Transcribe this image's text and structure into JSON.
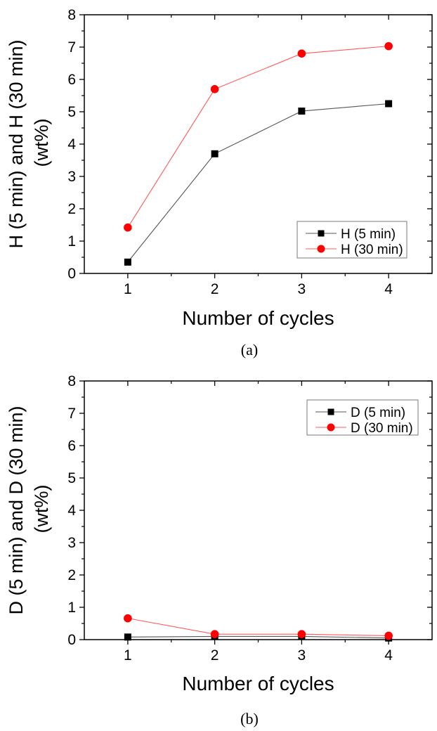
{
  "chart_data": [
    {
      "type": "line",
      "panel_label": "(a)",
      "xlabel": "Number of cycles",
      "ylabel_line1": "H (5 min) and H (30 min)",
      "ylabel_line2": "(wt%)",
      "xlim": [
        0.5,
        4.5
      ],
      "ylim": [
        0,
        8
      ],
      "x_ticks": [
        1,
        2,
        3,
        4
      ],
      "x_tick_labels": [
        "1",
        "2",
        "3",
        "4"
      ],
      "y_ticks": [
        0,
        1,
        2,
        3,
        4,
        5,
        6,
        7,
        8
      ],
      "y_tick_labels": [
        "0",
        "1",
        "2",
        "3",
        "4",
        "5",
        "6",
        "7",
        "8"
      ],
      "grid": false,
      "legend_position": "bottom-right",
      "x": [
        1,
        2,
        3,
        4
      ],
      "series": [
        {
          "name": "H (5 min)",
          "marker": "square",
          "color": "#000000",
          "line_color": "#555555",
          "values": [
            0.35,
            3.7,
            5.02,
            5.25
          ]
        },
        {
          "name": "H (30 min)",
          "marker": "circle",
          "color": "#ff0000",
          "line_color": "#ff5a5a",
          "values": [
            1.42,
            5.7,
            6.8,
            7.03
          ]
        }
      ]
    },
    {
      "type": "line",
      "panel_label": "(b)",
      "xlabel": "Number of cycles",
      "ylabel_line1": "D (5 min) and D (30 min)",
      "ylabel_line2": "(wt%)",
      "xlim": [
        0.5,
        4.5
      ],
      "ylim": [
        0,
        8
      ],
      "x_ticks": [
        1,
        2,
        3,
        4
      ],
      "x_tick_labels": [
        "1",
        "2",
        "3",
        "4"
      ],
      "y_ticks": [
        0,
        1,
        2,
        3,
        4,
        5,
        6,
        7,
        8
      ],
      "y_tick_labels": [
        "0",
        "1",
        "2",
        "3",
        "4",
        "5",
        "6",
        "7",
        "8"
      ],
      "grid": false,
      "legend_position": "top-right",
      "x": [
        1,
        2,
        3,
        4
      ],
      "series": [
        {
          "name": "D (5 min)",
          "marker": "square",
          "color": "#000000",
          "line_color": "#555555",
          "values": [
            0.08,
            0.1,
            0.1,
            0.05
          ]
        },
        {
          "name": "D (30 min)",
          "marker": "circle",
          "color": "#ff0000",
          "line_color": "#ff5a5a",
          "values": [
            0.66,
            0.17,
            0.17,
            0.12
          ]
        }
      ]
    }
  ]
}
